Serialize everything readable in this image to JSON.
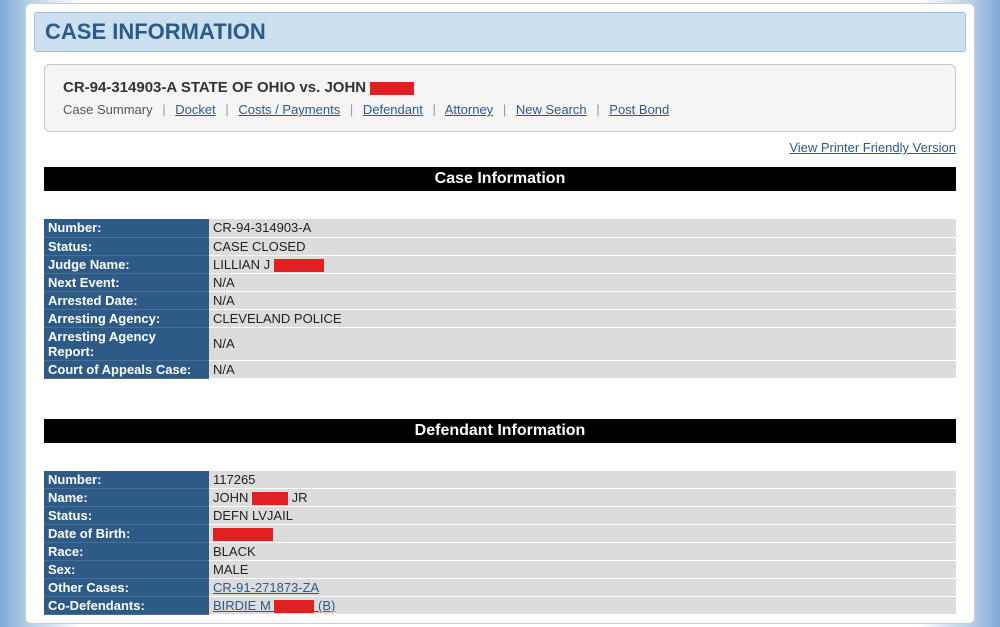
{
  "page_title": "CASE INFORMATION",
  "case": {
    "full_title_prefix": "CR-94-314903-A   STATE OF OHIO vs. JOHN ",
    "redact_width": 44
  },
  "nav": {
    "summary": "Case Summary",
    "docket": "Docket",
    "costs": "Costs / Payments",
    "defendant": "Defendant",
    "attorney": "Attorney",
    "newsearch": "New Search",
    "postbond": "Post Bond"
  },
  "printer_link": "View Printer Friendly Version",
  "sections": {
    "case_info": {
      "header": "Case Information",
      "rows": [
        {
          "label": "Number:",
          "value": "CR-94-314903-A"
        },
        {
          "label": "Status:",
          "value": "CASE CLOSED"
        },
        {
          "label": "Judge Name:",
          "value_prefix": "LILLIAN J ",
          "redact_width": 50
        },
        {
          "label": "Next Event:",
          "value": "N/A"
        },
        {
          "label": "Arrested Date:",
          "value": "N/A"
        },
        {
          "label": "Arresting Agency:",
          "value": "CLEVELAND POLICE"
        },
        {
          "label": "Arresting Agency Report:",
          "value": "N/A"
        },
        {
          "label": "Court of Appeals Case:",
          "value": "N/A"
        }
      ]
    },
    "defendant_info": {
      "header": "Defendant Information",
      "rows": [
        {
          "label": "Number:",
          "value": "117265"
        },
        {
          "label": "Name:",
          "value_prefix": "JOHN ",
          "redact_width": 36,
          "value_suffix": " JR"
        },
        {
          "label": "Status:",
          "value": "DEFN LVJAIL"
        },
        {
          "label": "Date of Birth:",
          "redact_width": 60
        },
        {
          "label": "Race:",
          "value": "BLACK"
        },
        {
          "label": "Sex:",
          "value": "MALE"
        },
        {
          "label": "Other Cases:",
          "link": "CR-91-271873-ZA"
        },
        {
          "label": "Co-Defendants:",
          "link_prefix": "BIRDIE M ",
          "redact_width": 40,
          "link_suffix": " (B)"
        }
      ]
    }
  }
}
